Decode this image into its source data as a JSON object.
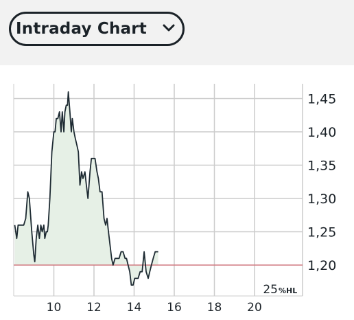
{
  "selector": {
    "label": "Intraday Chart"
  },
  "chart_data": {
    "type": "area",
    "x_ticks": [
      10,
      12,
      14,
      16,
      18,
      20
    ],
    "y_ticks": [
      "1,45",
      "1,40",
      "1,35",
      "1,30",
      "1,25",
      "1,20"
    ],
    "y_tick_values": [
      1.45,
      1.4,
      1.35,
      1.3,
      1.25,
      1.2
    ],
    "xlim": [
      8,
      22
    ],
    "ylim": [
      1.15,
      1.475
    ],
    "reference_line": 1.2,
    "footer_label_num": "25",
    "footer_label_unit": "%HL",
    "colors": {
      "line": "#1e2b33",
      "fill": "#e6f0e6",
      "reference": "#d07a80",
      "grid": "#cccccc"
    },
    "series": [
      {
        "x": [
          8.05,
          8.15,
          8.22,
          8.3,
          8.4,
          8.5,
          8.6,
          8.7,
          8.78,
          8.9,
          9.0,
          9.05,
          9.12,
          9.2,
          9.28,
          9.35,
          9.42,
          9.5,
          9.55,
          9.62,
          9.68,
          9.72,
          9.8,
          9.9,
          10.0,
          10.06,
          10.12,
          10.2,
          10.28,
          10.36,
          10.42,
          10.5,
          10.55,
          10.62,
          10.68,
          10.72,
          10.8,
          10.87,
          10.92,
          11.0,
          11.07,
          11.15,
          11.22,
          11.3,
          11.38,
          11.45,
          11.55,
          11.62,
          11.7,
          11.8,
          11.87,
          11.95,
          12.05,
          12.15,
          12.22,
          12.3,
          12.4,
          12.5,
          12.58,
          12.65,
          12.72,
          12.8,
          12.88,
          12.95,
          13.05,
          13.15,
          13.25,
          13.35,
          13.45,
          13.55,
          13.62,
          13.7,
          13.78,
          13.86,
          13.95,
          14.03,
          14.12,
          14.2,
          14.3,
          14.4,
          14.5,
          14.6,
          14.7,
          14.78,
          14.86,
          14.95,
          15.05,
          15.12,
          15.2
        ],
        "values": [
          1.26,
          1.24,
          1.26,
          1.26,
          1.26,
          1.26,
          1.27,
          1.31,
          1.3,
          1.25,
          1.215,
          1.205,
          1.24,
          1.26,
          1.24,
          1.26,
          1.25,
          1.26,
          1.24,
          1.25,
          1.25,
          1.26,
          1.3,
          1.37,
          1.4,
          1.4,
          1.42,
          1.42,
          1.43,
          1.4,
          1.43,
          1.4,
          1.43,
          1.44,
          1.44,
          1.46,
          1.43,
          1.4,
          1.42,
          1.4,
          1.39,
          1.38,
          1.37,
          1.32,
          1.34,
          1.33,
          1.34,
          1.32,
          1.3,
          1.34,
          1.36,
          1.36,
          1.36,
          1.34,
          1.33,
          1.31,
          1.31,
          1.27,
          1.26,
          1.27,
          1.25,
          1.23,
          1.21,
          1.2,
          1.21,
          1.21,
          1.21,
          1.22,
          1.22,
          1.21,
          1.21,
          1.2,
          1.19,
          1.17,
          1.17,
          1.18,
          1.18,
          1.18,
          1.19,
          1.19,
          1.22,
          1.19,
          1.18,
          1.19,
          1.2,
          1.21,
          1.22,
          1.22,
          1.22
        ]
      }
    ]
  }
}
